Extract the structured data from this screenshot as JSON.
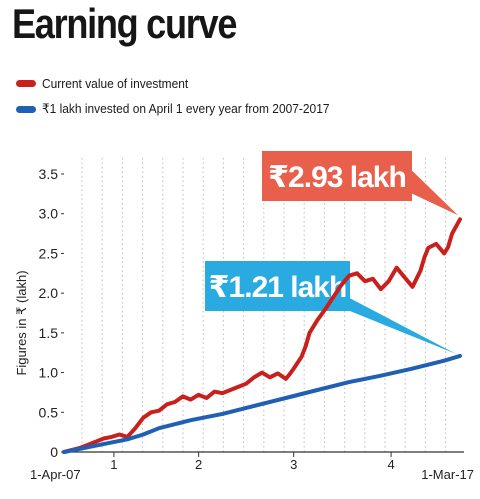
{
  "title": "Earning curve",
  "legend": [
    {
      "label": "Current value of investment",
      "color": "#c8201c"
    },
    {
      "label": "₹1 lakh invested on April 1 every year from 2007-2017",
      "color": "#1f5fb4"
    }
  ],
  "colors": {
    "red_callout": "#e8604c",
    "blue_callout": "#29abe2",
    "axis": "#333333",
    "grid": "#bdbdbd"
  },
  "chart_data": {
    "type": "line",
    "ylabel": "Figures in ₹ (lakh)",
    "ylim": [
      0,
      3.5
    ],
    "yticks": [
      "0",
      "0.5",
      "1.0",
      "1.5",
      "2.0",
      "2.5",
      "3.0",
      "3.5"
    ],
    "xlim": [
      0,
      5
    ],
    "x_edge_labels": [
      "1-Apr-07",
      "1-Mar-17"
    ],
    "x_ticks": [
      {
        "x": 0.63,
        "label": "1"
      },
      {
        "x": 1.7,
        "label": "2"
      },
      {
        "x": 2.9,
        "label": "3"
      },
      {
        "x": 4.13,
        "label": "4"
      }
    ],
    "grid": "vertical dotted lines",
    "series": [
      {
        "name": "Current value of investment",
        "color": "#c8201c",
        "x": [
          0,
          0.2,
          0.4,
          0.5,
          0.6,
          0.7,
          0.8,
          0.9,
          1.0,
          1.1,
          1.2,
          1.3,
          1.4,
          1.5,
          1.6,
          1.7,
          1.8,
          1.9,
          2.0,
          2.1,
          2.2,
          2.3,
          2.4,
          2.5,
          2.6,
          2.7,
          2.8,
          2.85,
          2.9,
          3.0,
          3.05,
          3.1,
          3.2,
          3.3,
          3.4,
          3.5,
          3.6,
          3.7,
          3.8,
          3.9,
          4.0,
          4.1,
          4.2,
          4.3,
          4.4,
          4.5,
          4.55,
          4.6,
          4.7,
          4.8,
          4.85,
          4.9,
          5.0
        ],
        "y": [
          0,
          0.05,
          0.13,
          0.17,
          0.19,
          0.22,
          0.19,
          0.3,
          0.43,
          0.5,
          0.52,
          0.6,
          0.63,
          0.7,
          0.66,
          0.72,
          0.68,
          0.76,
          0.74,
          0.78,
          0.82,
          0.86,
          0.94,
          1.0,
          0.94,
          0.99,
          0.92,
          0.98,
          1.05,
          1.2,
          1.33,
          1.5,
          1.66,
          1.8,
          1.95,
          2.1,
          2.22,
          2.25,
          2.15,
          2.18,
          2.05,
          2.15,
          2.32,
          2.2,
          2.08,
          2.28,
          2.45,
          2.57,
          2.62,
          2.5,
          2.58,
          2.75,
          2.93
        ]
      },
      {
        "name": "₹1 lakh invested on April 1 every year from 2007-2017",
        "color": "#1f5fb4",
        "x": [
          0,
          0.5,
          0.8,
          1.0,
          1.2,
          1.6,
          2.0,
          2.4,
          2.8,
          3.2,
          3.6,
          4.0,
          4.4,
          4.8,
          5.0
        ],
        "y": [
          0,
          0.1,
          0.16,
          0.22,
          0.3,
          0.4,
          0.48,
          0.58,
          0.68,
          0.78,
          0.88,
          0.96,
          1.05,
          1.15,
          1.21
        ]
      }
    ],
    "callouts": [
      {
        "text": "₹2.93 lakh",
        "series": 0,
        "color": "#e8604c"
      },
      {
        "text": "₹1.21 lakh",
        "series": 1,
        "color": "#29abe2"
      }
    ]
  }
}
